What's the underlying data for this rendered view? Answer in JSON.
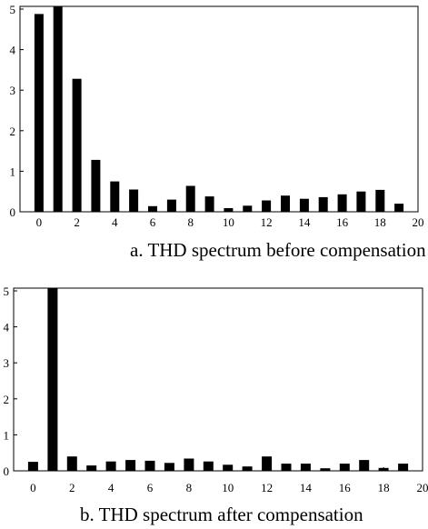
{
  "chart_data": [
    {
      "type": "bar",
      "title": "",
      "caption": "a. THD spectrum before compensation",
      "xlabel": "",
      "ylabel": "",
      "xlim": [
        -1,
        20
      ],
      "ylim": [
        0,
        5
      ],
      "x_ticks": [
        "0",
        "2",
        "4",
        "6",
        "8",
        "10",
        "12",
        "14",
        "16",
        "18",
        "20"
      ],
      "y_ticks": [
        "0",
        "1",
        "2",
        "3",
        "4",
        "5"
      ],
      "x": [
        0,
        1,
        2,
        3,
        4,
        5,
        6,
        7,
        8,
        9,
        10,
        11,
        12,
        13,
        14,
        15,
        16,
        17,
        18,
        19
      ],
      "values": [
        4.88,
        5.2,
        3.28,
        1.28,
        0.75,
        0.55,
        0.14,
        0.3,
        0.64,
        0.38,
        0.09,
        0.15,
        0.28,
        0.4,
        0.32,
        0.36,
        0.43,
        0.5,
        0.54,
        0.2
      ],
      "grid": false,
      "bar_color": "#000000"
    },
    {
      "type": "bar",
      "title": "",
      "caption": "b. THD spectrum after compensation",
      "xlabel": "",
      "ylabel": "",
      "xlim": [
        -1,
        20
      ],
      "ylim": [
        0,
        5
      ],
      "x_ticks": [
        "0",
        "2",
        "4",
        "6",
        "8",
        "10",
        "12",
        "14",
        "16",
        "18",
        "20"
      ],
      "y_ticks": [
        "0",
        "1",
        "2",
        "3",
        "4",
        "5"
      ],
      "x": [
        0,
        1,
        2,
        3,
        4,
        5,
        6,
        7,
        8,
        9,
        10,
        11,
        12,
        13,
        14,
        15,
        16,
        17,
        18,
        19
      ],
      "values": [
        0.25,
        5.3,
        0.4,
        0.15,
        0.26,
        0.3,
        0.28,
        0.22,
        0.34,
        0.26,
        0.17,
        0.12,
        0.4,
        0.2,
        0.2,
        0.07,
        0.2,
        0.3,
        0.08,
        0.2
      ],
      "grid": false,
      "bar_color": "#000000"
    }
  ]
}
